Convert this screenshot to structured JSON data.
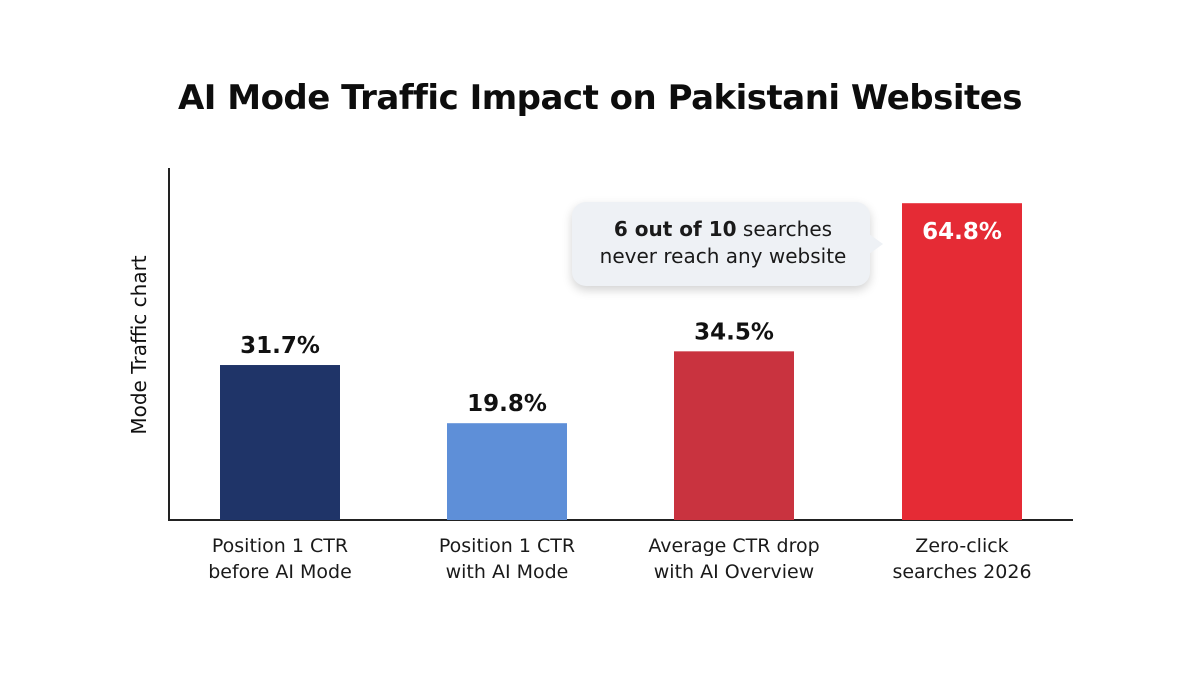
{
  "chart_data": {
    "type": "bar",
    "title": "AI Mode Traffic Impact on Pakistani Websites",
    "xlabel": "",
    "ylabel": "Mode Traffic chart",
    "ylim": [
      0,
      72
    ],
    "grid": false,
    "categories": [
      [
        "Position 1 CTR",
        "before AI Mode"
      ],
      [
        "Position 1 CTR",
        "with AI Mode"
      ],
      [
        "Average CTR drop",
        "with AI Overview"
      ],
      [
        "Zero-click",
        "searches 2026"
      ]
    ],
    "values": [
      31.7,
      19.8,
      34.5,
      64.8
    ],
    "value_labels": [
      "31.7%",
      "19.8%",
      "34.5%",
      "64.8%"
    ],
    "colors": [
      "#1f3468",
      "#5e8fd8",
      "#c9333f",
      "#e52b35"
    ],
    "value_label_colors": [
      "#111111",
      "#111111",
      "#111111",
      "#ffffff"
    ],
    "annotation": {
      "bold": "6 out of 10",
      "text_line1_rest": " searches",
      "text_line2": "never reach any website"
    }
  }
}
